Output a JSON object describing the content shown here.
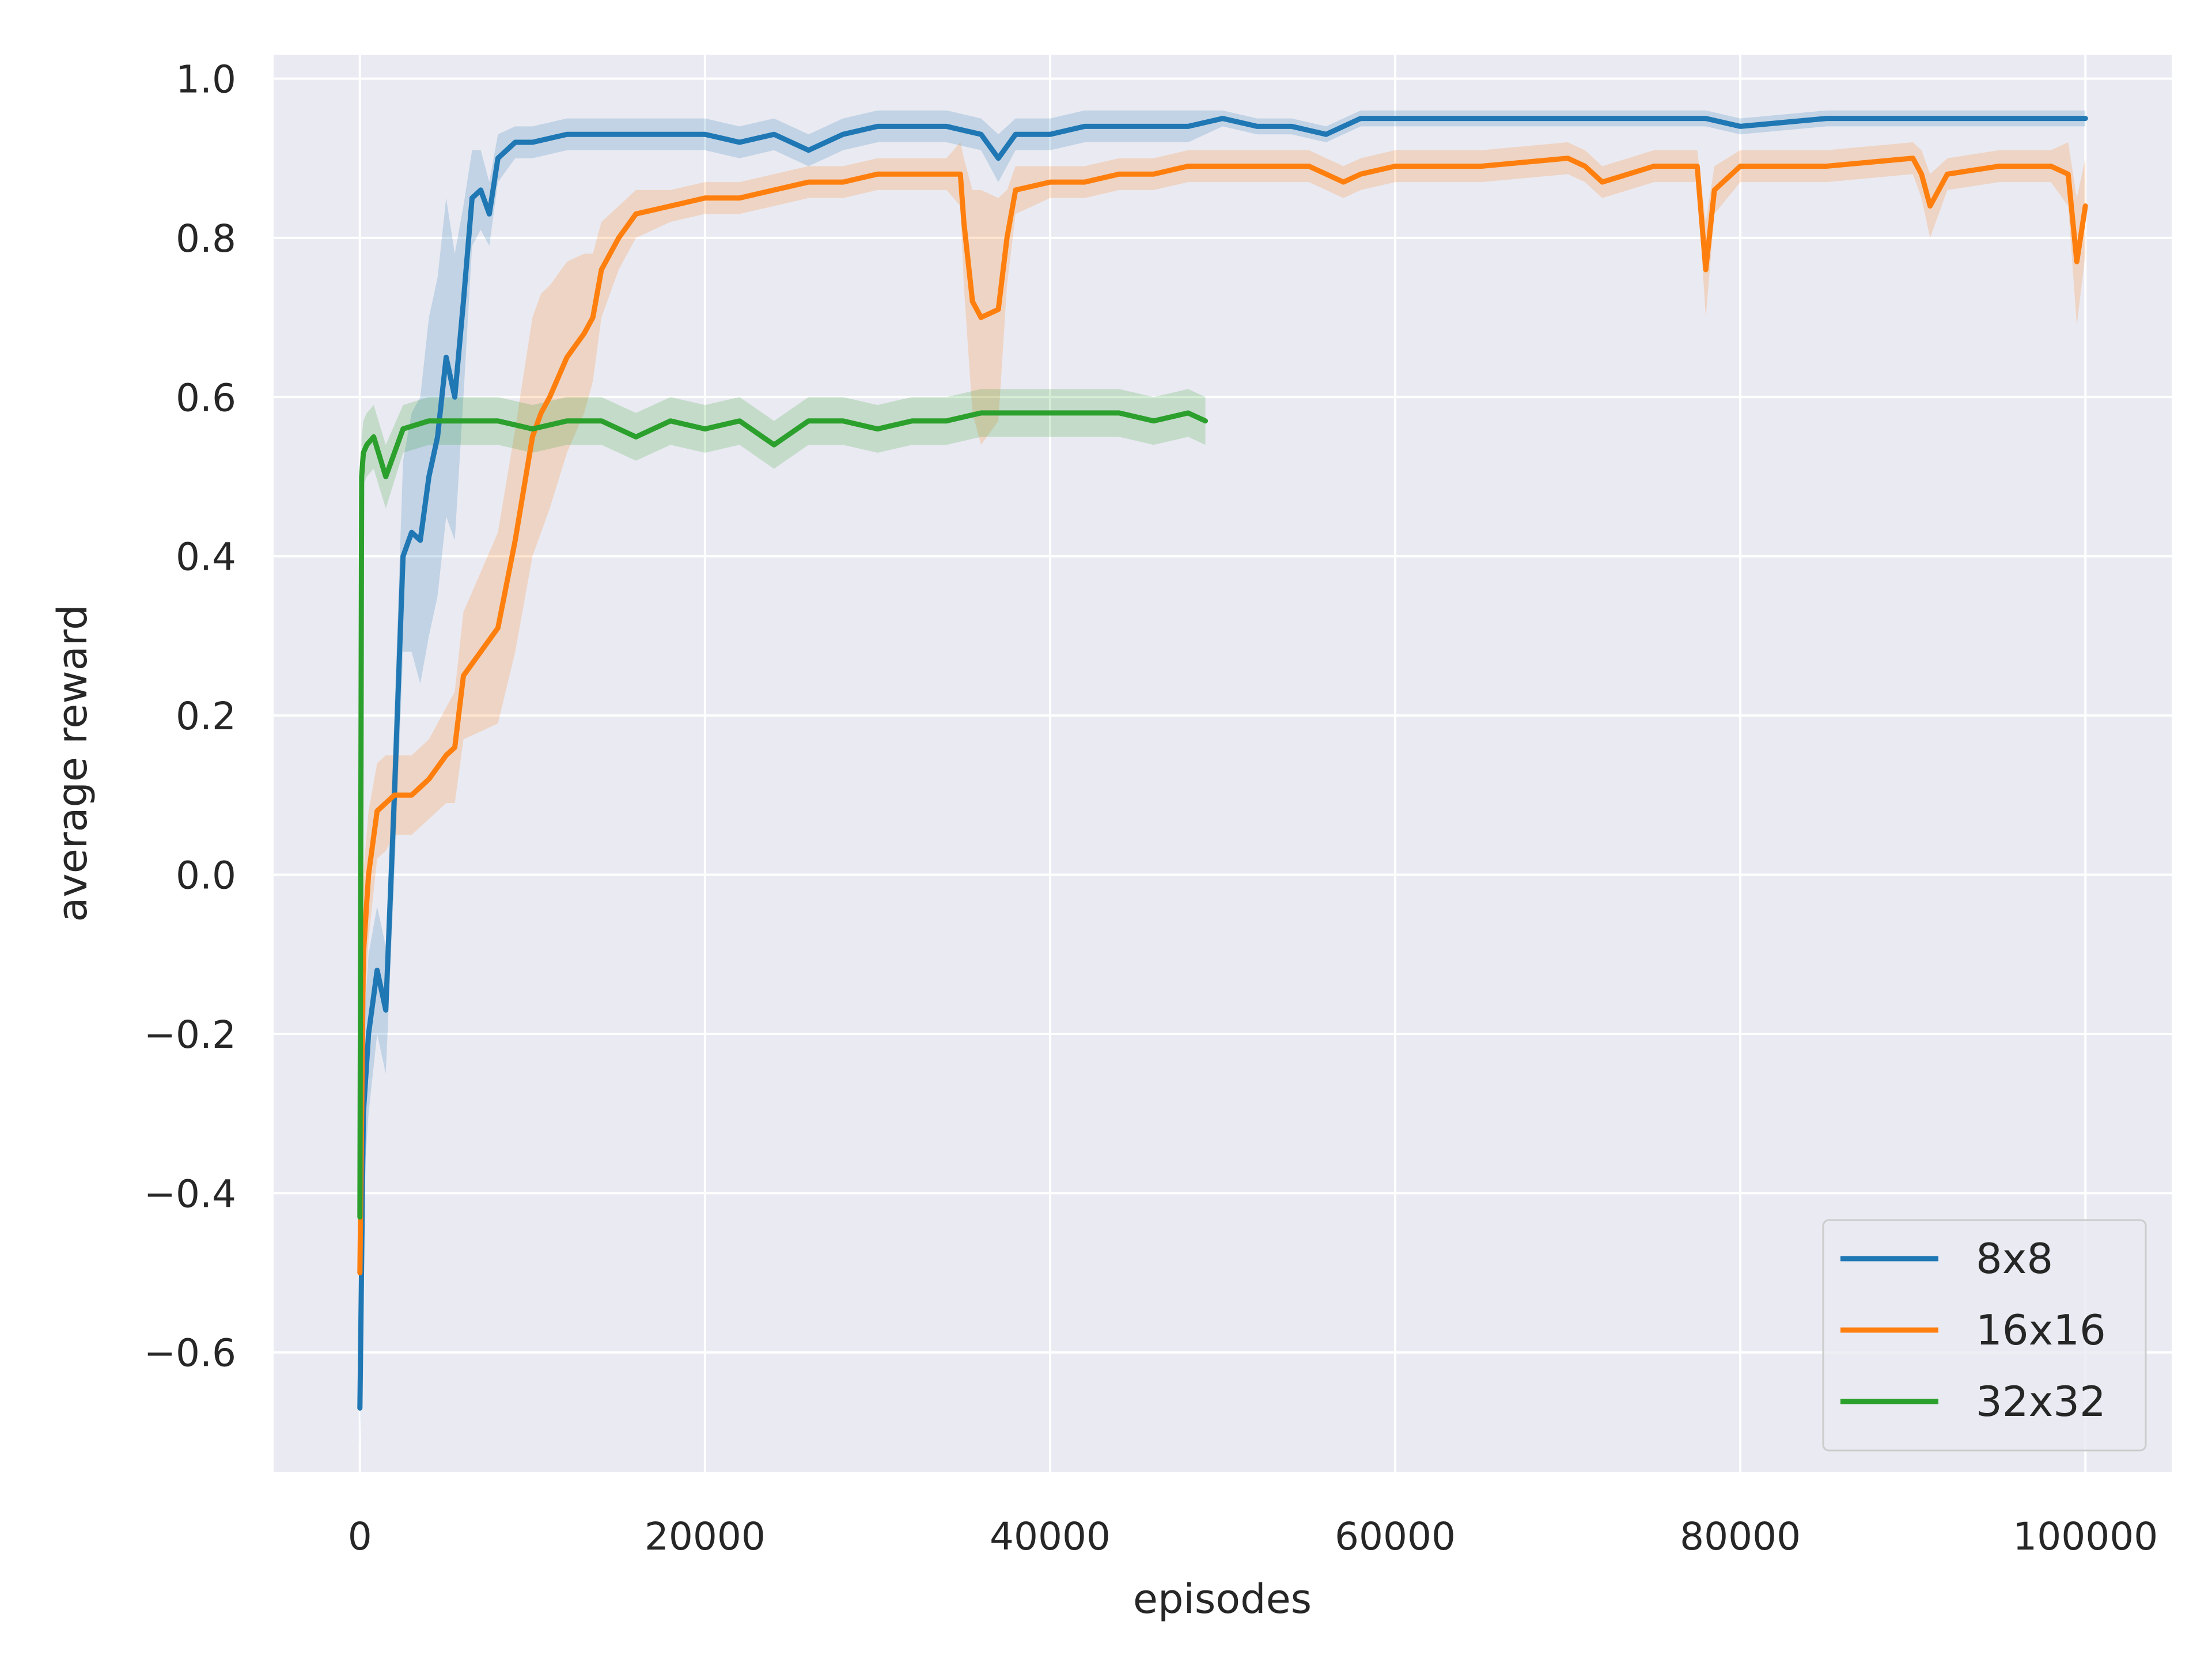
{
  "chart_data": {
    "type": "line",
    "title": "",
    "xlabel": "episodes",
    "ylabel": "average reward",
    "xlim": [
      -5000,
      105000
    ],
    "ylim": [
      -0.75,
      1.03
    ],
    "xticks": [
      0,
      20000,
      40000,
      60000,
      80000,
      100000
    ],
    "xtick_labels": [
      "0",
      "20000",
      "40000",
      "60000",
      "80000",
      "100000"
    ],
    "yticks": [
      -0.6,
      -0.4,
      -0.2,
      0.0,
      0.2,
      0.4,
      0.6,
      0.8,
      1.0
    ],
    "ytick_labels": [
      "−0.6",
      "−0.4",
      "−0.2",
      "0.0",
      "0.2",
      "0.4",
      "0.6",
      "0.8",
      "1.0"
    ],
    "grid": true,
    "legend_position": "bottom-right",
    "series": [
      {
        "name": "8x8",
        "color": "#1f77b4",
        "x": [
          0,
          200,
          500,
          1000,
          1500,
          2000,
          2500,
          3000,
          3500,
          4000,
          4500,
          5000,
          5500,
          6000,
          6500,
          7000,
          7500,
          8000,
          9000,
          10000,
          12000,
          14000,
          16000,
          18000,
          20000,
          22000,
          24000,
          26000,
          28000,
          30000,
          32000,
          34000,
          36000,
          37000,
          38000,
          40000,
          42000,
          44000,
          46000,
          48000,
          50000,
          52000,
          54000,
          56000,
          58000,
          60000,
          65000,
          70000,
          75000,
          78000,
          80000,
          85000,
          90000,
          95000,
          100000
        ],
        "y": [
          -0.67,
          -0.3,
          -0.2,
          -0.12,
          -0.17,
          0.1,
          0.4,
          0.43,
          0.42,
          0.5,
          0.55,
          0.65,
          0.6,
          0.72,
          0.85,
          0.86,
          0.83,
          0.9,
          0.92,
          0.92,
          0.93,
          0.93,
          0.93,
          0.93,
          0.93,
          0.92,
          0.93,
          0.91,
          0.93,
          0.94,
          0.94,
          0.94,
          0.93,
          0.9,
          0.93,
          0.93,
          0.94,
          0.94,
          0.94,
          0.94,
          0.95,
          0.94,
          0.94,
          0.93,
          0.95,
          0.95,
          0.95,
          0.95,
          0.95,
          0.95,
          0.94,
          0.95,
          0.95,
          0.95,
          0.95
        ],
        "band": [
          0.05,
          0.1,
          0.1,
          0.08,
          0.08,
          0.1,
          0.12,
          0.15,
          0.18,
          0.2,
          0.2,
          0.2,
          0.18,
          0.12,
          0.06,
          0.05,
          0.04,
          0.03,
          0.02,
          0.02,
          0.02,
          0.02,
          0.02,
          0.02,
          0.02,
          0.02,
          0.02,
          0.02,
          0.02,
          0.02,
          0.02,
          0.02,
          0.02,
          0.03,
          0.02,
          0.02,
          0.02,
          0.02,
          0.02,
          0.02,
          0.01,
          0.01,
          0.01,
          0.01,
          0.01,
          0.01,
          0.01,
          0.01,
          0.01,
          0.01,
          0.01,
          0.01,
          0.01,
          0.01,
          0.01
        ]
      },
      {
        "name": "16x16",
        "color": "#ff7f0e",
        "x": [
          0,
          200,
          500,
          1000,
          1500,
          2000,
          3000,
          4000,
          5000,
          5500,
          6000,
          7000,
          8000,
          9000,
          10000,
          10500,
          11000,
          12000,
          13000,
          13500,
          14000,
          14500,
          15000,
          16000,
          18000,
          20000,
          22000,
          24000,
          26000,
          28000,
          30000,
          32000,
          34000,
          34800,
          35000,
          35500,
          36000,
          37000,
          37500,
          38000,
          40000,
          42000,
          44000,
          46000,
          48000,
          50000,
          55000,
          57000,
          58000,
          60000,
          65000,
          70000,
          71000,
          72000,
          75000,
          77500,
          78000,
          78500,
          80000,
          85000,
          90000,
          90500,
          91000,
          91500,
          92000,
          95000,
          98000,
          99000,
          99500,
          100000
        ],
        "y": [
          -0.5,
          -0.1,
          0.0,
          0.08,
          0.09,
          0.1,
          0.1,
          0.12,
          0.15,
          0.16,
          0.25,
          0.28,
          0.31,
          0.42,
          0.55,
          0.58,
          0.6,
          0.65,
          0.68,
          0.7,
          0.76,
          0.78,
          0.8,
          0.83,
          0.84,
          0.85,
          0.85,
          0.86,
          0.87,
          0.87,
          0.88,
          0.88,
          0.88,
          0.88,
          0.82,
          0.72,
          0.7,
          0.71,
          0.8,
          0.86,
          0.87,
          0.87,
          0.88,
          0.88,
          0.89,
          0.89,
          0.89,
          0.87,
          0.88,
          0.89,
          0.89,
          0.9,
          0.89,
          0.87,
          0.89,
          0.89,
          0.76,
          0.86,
          0.89,
          0.89,
          0.9,
          0.88,
          0.84,
          0.86,
          0.88,
          0.89,
          0.89,
          0.88,
          0.77,
          0.84
        ],
        "band": [
          0.05,
          0.1,
          0.08,
          0.06,
          0.06,
          0.05,
          0.05,
          0.05,
          0.06,
          0.07,
          0.08,
          0.1,
          0.12,
          0.14,
          0.15,
          0.15,
          0.14,
          0.12,
          0.1,
          0.08,
          0.06,
          0.05,
          0.04,
          0.03,
          0.02,
          0.02,
          0.02,
          0.02,
          0.02,
          0.02,
          0.02,
          0.02,
          0.02,
          0.04,
          0.08,
          0.14,
          0.16,
          0.14,
          0.06,
          0.03,
          0.02,
          0.02,
          0.02,
          0.02,
          0.02,
          0.02,
          0.02,
          0.02,
          0.02,
          0.02,
          0.02,
          0.02,
          0.02,
          0.02,
          0.02,
          0.02,
          0.06,
          0.03,
          0.02,
          0.02,
          0.02,
          0.03,
          0.04,
          0.03,
          0.02,
          0.02,
          0.02,
          0.04,
          0.08,
          0.06
        ]
      },
      {
        "name": "32x32",
        "color": "#2ca02c",
        "x": [
          0,
          100,
          200,
          400,
          800,
          1500,
          2500,
          4000,
          6000,
          8000,
          10000,
          12000,
          14000,
          16000,
          18000,
          20000,
          22000,
          24000,
          26000,
          28000,
          30000,
          32000,
          34000,
          36000,
          38000,
          40000,
          42000,
          44000,
          46000,
          48000,
          49000
        ],
        "y": [
          -0.43,
          0.5,
          0.53,
          0.54,
          0.55,
          0.5,
          0.56,
          0.57,
          0.57,
          0.57,
          0.56,
          0.57,
          0.57,
          0.55,
          0.57,
          0.56,
          0.57,
          0.54,
          0.57,
          0.57,
          0.56,
          0.57,
          0.57,
          0.58,
          0.58,
          0.58,
          0.58,
          0.58,
          0.57,
          0.58,
          0.57
        ],
        "band": [
          0.05,
          0.05,
          0.04,
          0.04,
          0.04,
          0.04,
          0.03,
          0.03,
          0.03,
          0.03,
          0.03,
          0.03,
          0.03,
          0.03,
          0.03,
          0.03,
          0.03,
          0.03,
          0.03,
          0.03,
          0.03,
          0.03,
          0.03,
          0.03,
          0.03,
          0.03,
          0.03,
          0.03,
          0.03,
          0.03,
          0.03
        ]
      }
    ]
  }
}
